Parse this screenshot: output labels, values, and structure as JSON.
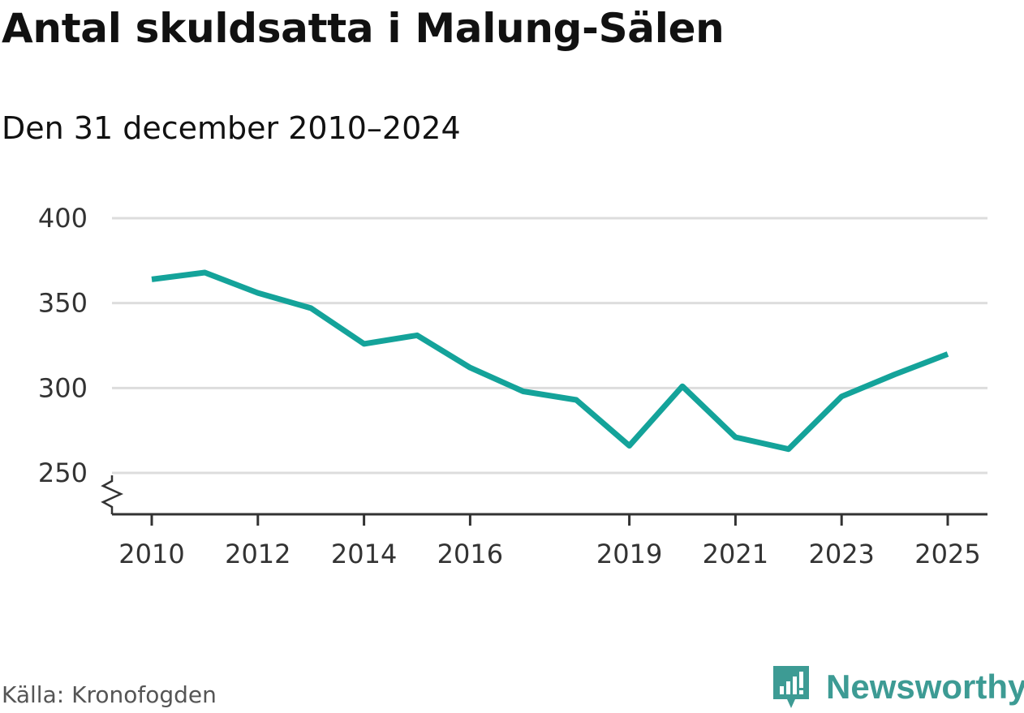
{
  "chart_data": {
    "type": "line",
    "title": "Antal skuldsatta i Malung-Sälen",
    "subtitle": "Den 31 december 2010–2024",
    "xlabel": "",
    "ylabel": "",
    "x": [
      2010,
      2011,
      2012,
      2013,
      2014,
      2015,
      2016,
      2017,
      2018,
      2019,
      2020,
      2021,
      2022,
      2023,
      2024,
      2025
    ],
    "series": [
      {
        "values": [
          364,
          368,
          356,
          347,
          326,
          331,
          312,
          298,
          293,
          266,
          301,
          271,
          264,
          295,
          308,
          320
        ],
        "color": "#14a39a"
      }
    ],
    "x_ticks": [
      "2010",
      "2012",
      "2014",
      "2016",
      "2019",
      "2021",
      "2023",
      "2025"
    ],
    "y_ticks": [
      "250",
      "300",
      "350",
      "400"
    ],
    "ylim": [
      225,
      400
    ],
    "xlim": [
      2009.25,
      2025.75
    ],
    "grid": true,
    "axis_break": true
  },
  "footer": {
    "source": "Källa: Kronofogden",
    "brand": "Newsworthy"
  },
  "colors": {
    "line": "#14a39a",
    "grid": "#dddddd",
    "axis": "#333333",
    "brand": "#3d9b94"
  }
}
